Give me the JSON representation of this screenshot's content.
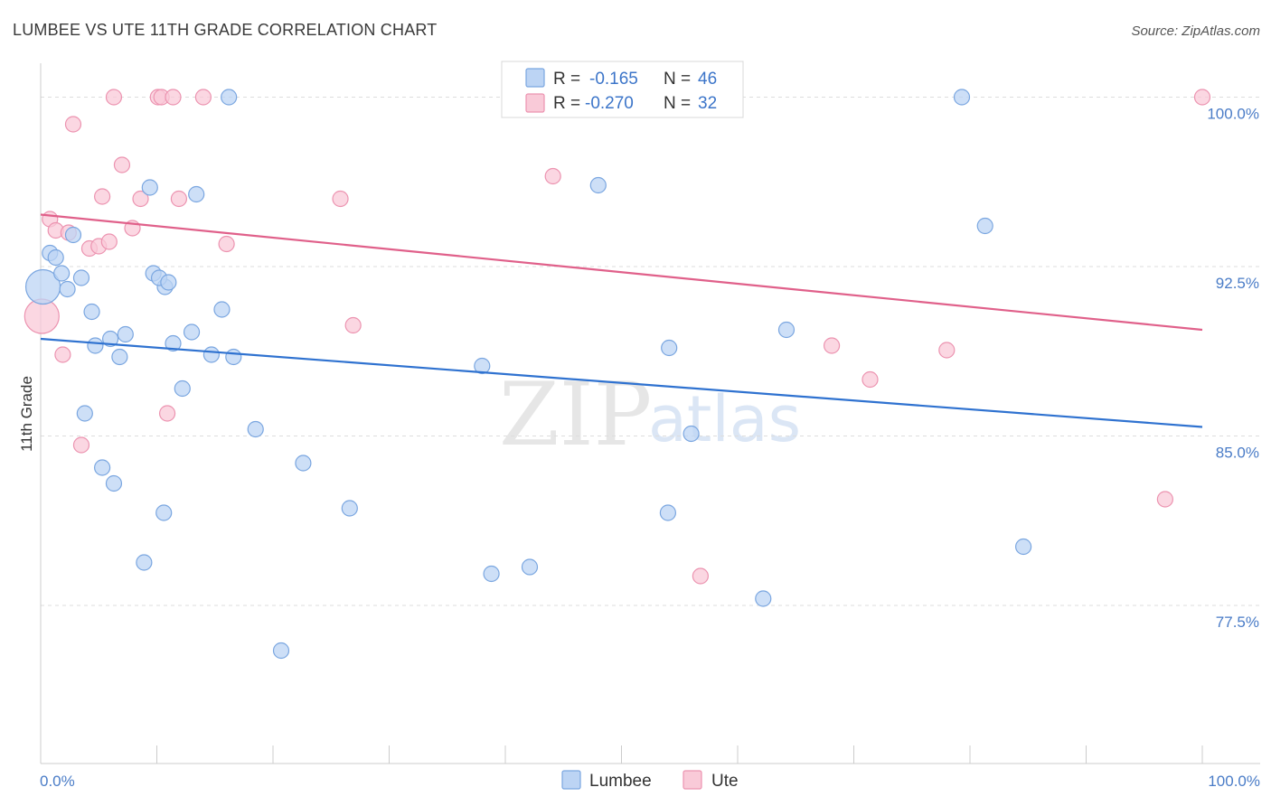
{
  "header": {
    "title": "LUMBEE VS UTE 11TH GRADE CORRELATION CHART",
    "source": "Source: ZipAtlas.com"
  },
  "watermark": {
    "zip": "ZIP",
    "atlas": "atlas"
  },
  "legend": {
    "lumbee": {
      "r_label": "R =",
      "r_value": "-0.165",
      "n_label": "N =",
      "n_value": "46"
    },
    "ute": {
      "r_label": "R =",
      "r_value": "-0.270",
      "n_label": "N =",
      "n_value": "32"
    }
  },
  "colors": {
    "lumbee_fill": "#bcd4f4",
    "lumbee_stroke": "#7aa6e0",
    "lumbee_line": "#2f72d0",
    "ute_fill": "#f9cad8",
    "ute_stroke": "#ec93b0",
    "ute_line": "#e0608a",
    "tick_label": "#4a7cc7",
    "grid": "#dddddd"
  },
  "chart_data": {
    "type": "scatter",
    "title": "LUMBEE VS UTE 11TH GRADE CORRELATION CHART",
    "xlabel": "",
    "ylabel": "11th Grade",
    "xlim": [
      0,
      100
    ],
    "ylim": [
      70.5,
      101.5
    ],
    "x_tick_labels": [
      "0.0%",
      "100.0%"
    ],
    "y_ticks": [
      77.5,
      85.0,
      92.5,
      100.0
    ],
    "y_tick_labels": [
      "77.5%",
      "85.0%",
      "92.5%",
      "100.0%"
    ],
    "grid": true,
    "legend_position": "top-center",
    "series": [
      {
        "name": "Lumbee",
        "r": -0.165,
        "n": 46,
        "trend": {
          "x": [
            0,
            100
          ],
          "y": [
            89.3,
            85.4
          ]
        },
        "points": [
          {
            "x": 0.2,
            "y": 91.6,
            "s": 2
          },
          {
            "x": 0.8,
            "y": 93.1,
            "s": 1
          },
          {
            "x": 1.3,
            "y": 92.9,
            "s": 1
          },
          {
            "x": 1.8,
            "y": 92.2,
            "s": 1
          },
          {
            "x": 2.3,
            "y": 91.5,
            "s": 1
          },
          {
            "x": 2.8,
            "y": 93.9,
            "s": 1
          },
          {
            "x": 3.5,
            "y": 92.0,
            "s": 1
          },
          {
            "x": 3.8,
            "y": 86.0,
            "s": 1
          },
          {
            "x": 4.4,
            "y": 90.5,
            "s": 1
          },
          {
            "x": 4.7,
            "y": 89.0,
            "s": 1
          },
          {
            "x": 5.3,
            "y": 83.6,
            "s": 1
          },
          {
            "x": 6.0,
            "y": 89.3,
            "s": 1
          },
          {
            "x": 6.3,
            "y": 82.9,
            "s": 1
          },
          {
            "x": 6.8,
            "y": 88.5,
            "s": 1
          },
          {
            "x": 7.3,
            "y": 89.5,
            "s": 1
          },
          {
            "x": 9.4,
            "y": 96.0,
            "s": 1
          },
          {
            "x": 9.7,
            "y": 92.2,
            "s": 1
          },
          {
            "x": 8.9,
            "y": 79.4,
            "s": 1
          },
          {
            "x": 10.7,
            "y": 91.6,
            "s": 1
          },
          {
            "x": 10.2,
            "y": 92.0,
            "s": 1
          },
          {
            "x": 10.6,
            "y": 81.6,
            "s": 1
          },
          {
            "x": 11.0,
            "y": 91.8,
            "s": 1
          },
          {
            "x": 11.4,
            "y": 89.1,
            "s": 1
          },
          {
            "x": 12.2,
            "y": 87.1,
            "s": 1
          },
          {
            "x": 13.0,
            "y": 89.6,
            "s": 1
          },
          {
            "x": 13.4,
            "y": 95.7,
            "s": 1
          },
          {
            "x": 14.7,
            "y": 88.6,
            "s": 1
          },
          {
            "x": 15.6,
            "y": 90.6,
            "s": 1
          },
          {
            "x": 16.2,
            "y": 100.0,
            "s": 1
          },
          {
            "x": 16.6,
            "y": 88.5,
            "s": 1
          },
          {
            "x": 18.5,
            "y": 85.3,
            "s": 1
          },
          {
            "x": 20.7,
            "y": 75.5,
            "s": 1
          },
          {
            "x": 22.6,
            "y": 83.8,
            "s": 1
          },
          {
            "x": 26.6,
            "y": 81.8,
            "s": 1
          },
          {
            "x": 38.0,
            "y": 88.1,
            "s": 1
          },
          {
            "x": 38.8,
            "y": 78.9,
            "s": 1
          },
          {
            "x": 42.1,
            "y": 79.2,
            "s": 1
          },
          {
            "x": 48.0,
            "y": 96.1,
            "s": 1
          },
          {
            "x": 54.1,
            "y": 88.9,
            "s": 1
          },
          {
            "x": 54.0,
            "y": 81.6,
            "s": 1
          },
          {
            "x": 56.0,
            "y": 85.1,
            "s": 1
          },
          {
            "x": 62.2,
            "y": 77.8,
            "s": 1
          },
          {
            "x": 64.2,
            "y": 89.7,
            "s": 1
          },
          {
            "x": 79.3,
            "y": 100.0,
            "s": 1
          },
          {
            "x": 81.3,
            "y": 94.3,
            "s": 1
          },
          {
            "x": 84.6,
            "y": 80.1,
            "s": 1
          }
        ]
      },
      {
        "name": "Ute",
        "r": -0.27,
        "n": 32,
        "trend": {
          "x": [
            0,
            100
          ],
          "y": [
            94.8,
            89.7
          ]
        },
        "points": [
          {
            "x": 0.1,
            "y": 90.3,
            "s": 2
          },
          {
            "x": 0.8,
            "y": 94.6,
            "s": 1
          },
          {
            "x": 1.3,
            "y": 94.1,
            "s": 1
          },
          {
            "x": 1.9,
            "y": 88.6,
            "s": 1
          },
          {
            "x": 2.4,
            "y": 94.0,
            "s": 1
          },
          {
            "x": 2.8,
            "y": 98.8,
            "s": 1
          },
          {
            "x": 3.5,
            "y": 84.6,
            "s": 1
          },
          {
            "x": 4.2,
            "y": 93.3,
            "s": 1
          },
          {
            "x": 5.0,
            "y": 93.4,
            "s": 1
          },
          {
            "x": 5.3,
            "y": 95.6,
            "s": 1
          },
          {
            "x": 5.9,
            "y": 93.6,
            "s": 1
          },
          {
            "x": 6.3,
            "y": 100.0,
            "s": 1
          },
          {
            "x": 7.0,
            "y": 97.0,
            "s": 1
          },
          {
            "x": 7.9,
            "y": 94.2,
            "s": 1
          },
          {
            "x": 8.6,
            "y": 95.5,
            "s": 1
          },
          {
            "x": 10.1,
            "y": 100.0,
            "s": 1
          },
          {
            "x": 10.4,
            "y": 100.0,
            "s": 1
          },
          {
            "x": 10.9,
            "y": 86.0,
            "s": 1
          },
          {
            "x": 11.4,
            "y": 100.0,
            "s": 1
          },
          {
            "x": 11.9,
            "y": 95.5,
            "s": 1
          },
          {
            "x": 14.0,
            "y": 100.0,
            "s": 1
          },
          {
            "x": 16.0,
            "y": 93.5,
            "s": 1
          },
          {
            "x": 25.8,
            "y": 95.5,
            "s": 1
          },
          {
            "x": 26.9,
            "y": 89.9,
            "s": 1
          },
          {
            "x": 44.1,
            "y": 96.5,
            "s": 1
          },
          {
            "x": 52.5,
            "y": 100.0,
            "s": 1
          },
          {
            "x": 56.8,
            "y": 78.8,
            "s": 1
          },
          {
            "x": 68.1,
            "y": 89.0,
            "s": 1
          },
          {
            "x": 71.4,
            "y": 87.5,
            "s": 1
          },
          {
            "x": 78.0,
            "y": 88.8,
            "s": 1
          },
          {
            "x": 96.8,
            "y": 82.2,
            "s": 1
          },
          {
            "x": 100.0,
            "y": 100.0,
            "s": 1
          }
        ]
      }
    ]
  }
}
